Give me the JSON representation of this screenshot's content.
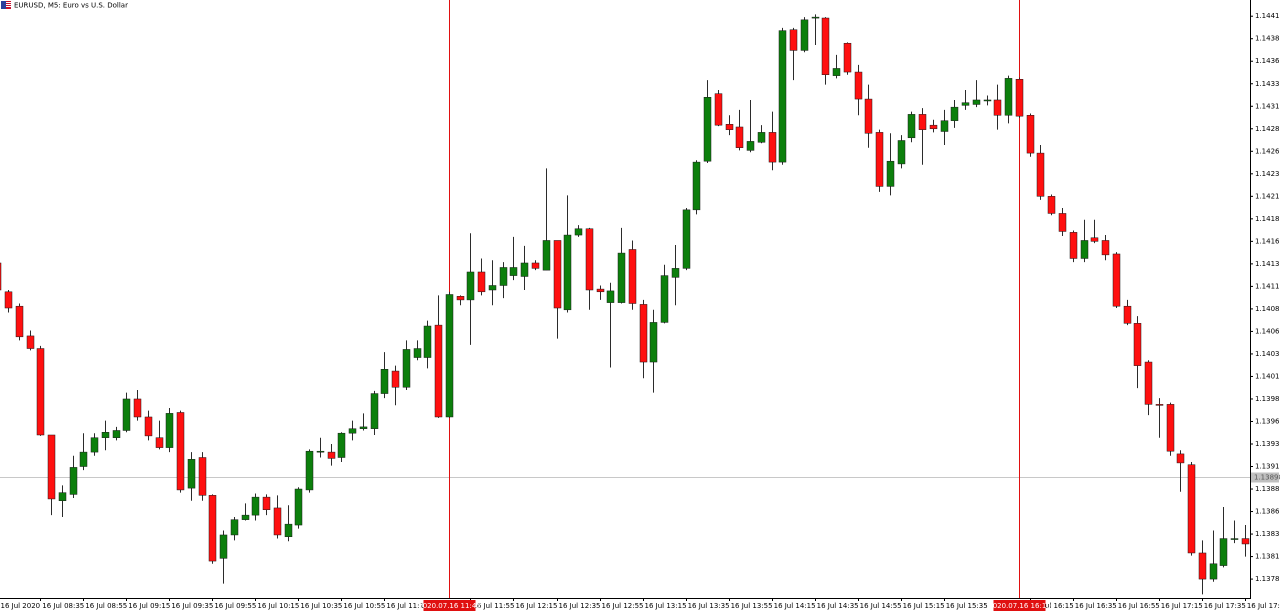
{
  "chart_data": {
    "type": "candlestick",
    "title": "EURUSD, M5:  Euro vs U.S. Dollar",
    "categories": [
      "16 Jul 2020",
      null,
      null,
      null,
      "16 Jul 08:35",
      null,
      null,
      null,
      "16 Jul 08:55",
      null,
      null,
      null,
      "16 Jul 09:15",
      null,
      null,
      null,
      "16 Jul 09:35",
      null,
      null,
      null,
      "16 Jul 09:55",
      null,
      null,
      null,
      "16 Jul 10:15",
      null,
      null,
      null,
      "16 Jul 10:35",
      null,
      null,
      null,
      "16 Jul 10:55",
      null,
      null,
      null,
      "16 Jul 11:15",
      null,
      null,
      null,
      null,
      null,
      null,
      null,
      "16 Jul 11:55",
      null,
      null,
      null,
      "16 Jul 12:15",
      null,
      null,
      null,
      "16 Jul 12:35",
      null,
      null,
      null,
      "16 Jul 12:55",
      null,
      null,
      null,
      "16 Jul 13:15",
      null,
      null,
      null,
      "16 Jul 13:35",
      null,
      null,
      null,
      "16 Jul 13:55",
      null,
      null,
      null,
      "16 Jul 14:15",
      null,
      null,
      null,
      "16 Jul 14:35",
      null,
      null,
      null,
      "16 Jul 14:55",
      null,
      null,
      null,
      "16 Jul 15:15",
      null,
      null,
      null,
      "16 Jul 15:35",
      null,
      null,
      null,
      null,
      null,
      null,
      null,
      "16 Jul 16:15",
      null,
      null,
      null,
      "16 Jul 16:35",
      null,
      null,
      null,
      "16 Jul 16:55",
      null,
      null,
      null,
      "16 Jul 17:15",
      null,
      null,
      null,
      "16 Jul 17:35",
      null,
      null,
      null,
      "16 Jul 17:55"
    ],
    "open": [
      1.14136,
      1.14104,
      1.14088,
      1.14055,
      1.14041,
      1.13945,
      1.13872,
      1.13879,
      1.1391,
      1.13926,
      1.13942,
      1.13942,
      1.1395,
      1.13985,
      1.13965,
      1.13942,
      1.13931,
      1.1397,
      1.13886,
      1.1392,
      1.13878,
      1.13808,
      1.13834,
      1.13851,
      1.13856,
      1.13876,
      1.13864,
      1.13832,
      1.13845,
      1.13884,
      1.13926,
      1.13926,
      1.1392,
      1.13947,
      1.13952,
      1.13952,
      1.13991,
      1.14016,
      1.13998,
      1.14031,
      1.14031,
      1.14067,
      1.13965,
      1.14099,
      1.14095,
      1.14126,
      1.14106,
      1.14111,
      1.14122,
      1.14121,
      1.14136,
      1.14128,
      1.14161,
      1.14084,
      1.14167,
      1.14174,
      1.14107,
      1.14092,
      1.14092,
      1.14151,
      1.1409,
      1.14026,
      1.1407,
      1.1412,
      1.1413,
      1.14195,
      1.14249,
      1.14324,
      1.1429,
      1.14287,
      1.14261,
      1.1427,
      1.14281,
      1.14248,
      1.14395,
      1.14372,
      1.14408,
      1.14408,
      1.14344,
      1.1438,
      1.14348,
      1.14318,
      1.14281,
      1.14221,
      1.14246,
      1.14275,
      1.14301,
      1.14289,
      1.14282,
      1.14294,
      1.14311,
      1.14312,
      1.14317,
      1.14317,
      1.143,
      1.1434,
      1.143,
      1.14258,
      1.1421,
      1.14191,
      1.1417,
      1.14141,
      1.14164,
      1.14161,
      1.14146,
      1.14088,
      1.14069,
      1.14026,
      1.13979,
      1.13979,
      1.13924,
      1.13912,
      1.13814,
      1.13785,
      1.138,
      1.1383,
      1.1383
    ],
    "high": [
      1.14139,
      1.14106,
      1.14091,
      1.14061,
      1.14044,
      1.13945,
      1.13889,
      1.13922,
      1.13947,
      1.13947,
      1.13961,
      1.13954,
      1.13992,
      1.13995,
      1.13972,
      1.13961,
      1.13975,
      1.13972,
      1.13926,
      1.13926,
      1.13879,
      1.13839,
      1.13854,
      1.13869,
      1.1388,
      1.13879,
      1.13878,
      1.13867,
      1.13887,
      1.13929,
      1.13942,
      1.13935,
      1.13948,
      1.13961,
      1.13969,
      1.13994,
      1.14037,
      1.14022,
      1.1405,
      1.1405,
      1.14072,
      1.141,
      1.14104,
      1.141,
      1.14169,
      1.14141,
      1.14139,
      1.14137,
      1.14165,
      1.14155,
      1.14139,
      1.14241,
      1.14161,
      1.14211,
      1.14178,
      1.14175,
      1.14111,
      1.14114,
      1.14175,
      1.14161,
      1.14095,
      1.14084,
      1.14134,
      1.14156,
      1.14197,
      1.1425,
      1.14339,
      1.14328,
      1.143,
      1.14306,
      1.14317,
      1.14289,
      1.14304,
      1.14397,
      1.14397,
      1.14409,
      1.14412,
      1.14409,
      1.14367,
      1.14381,
      1.14356,
      1.14334,
      1.14284,
      1.1428,
      1.14278,
      1.14304,
      1.14308,
      1.14295,
      1.14306,
      1.14317,
      1.14328,
      1.14339,
      1.14322,
      1.14334,
      1.14344,
      1.14342,
      1.14302,
      1.14267,
      1.14212,
      1.14197,
      1.14172,
      1.14184,
      1.14184,
      1.14167,
      1.14148,
      1.14095,
      1.14077,
      1.14028,
      1.13986,
      1.13981,
      1.13928,
      1.13915,
      1.13828,
      1.13839,
      1.13865,
      1.1385,
      1.13845
    ],
    "low": [
      1.14104,
      1.14081,
      1.1405,
      1.14039,
      1.13944,
      1.13856,
      1.13854,
      1.13875,
      1.13906,
      1.13922,
      1.13928,
      1.13939,
      1.13948,
      1.13961,
      1.13939,
      1.13929,
      1.13926,
      1.13881,
      1.13872,
      1.13872,
      1.13802,
      1.1378,
      1.13828,
      1.1385,
      1.1385,
      1.13856,
      1.1383,
      1.13827,
      1.13841,
      1.13881,
      1.1392,
      1.13911,
      1.13915,
      1.13939,
      1.1395,
      1.13945,
      1.13986,
      1.13978,
      1.13995,
      1.14028,
      1.14019,
      1.13964,
      1.13964,
      1.14089,
      1.14045,
      1.141,
      1.14089,
      1.14097,
      1.14117,
      1.14106,
      1.14128,
      1.14128,
      1.14052,
      1.14081,
      1.14165,
      1.14084,
      1.14095,
      1.1402,
      1.14091,
      1.14084,
      1.14008,
      1.13992,
      1.14069,
      1.14089,
      1.14128,
      1.1419,
      1.14247,
      1.14288,
      1.14278,
      1.14261,
      1.14259,
      1.14269,
      1.14239,
      1.14245,
      1.14339,
      1.1437,
      1.14378,
      1.14334,
      1.14341,
      1.14345,
      1.143,
      1.14264,
      1.14215,
      1.14211,
      1.14241,
      1.1427,
      1.14245,
      1.14281,
      1.14267,
      1.14286,
      1.14306,
      1.14309,
      1.14311,
      1.14284,
      1.14291,
      1.14297,
      1.14254,
      1.14206,
      1.14189,
      1.14166,
      1.14137,
      1.14137,
      1.14158,
      1.14139,
      1.14086,
      1.14067,
      1.13997,
      1.13967,
      1.13942,
      1.13922,
      1.13882,
      1.13811,
      1.13768,
      1.13782,
      1.13798,
      1.13825,
      1.1381
    ],
    "close": [
      1.14106,
      1.14086,
      1.14054,
      1.14041,
      1.13945,
      1.13874,
      1.13881,
      1.13909,
      1.13926,
      1.13942,
      1.13948,
      1.1395,
      1.13985,
      1.13965,
      1.13944,
      1.13931,
      1.13969,
      1.13884,
      1.13918,
      1.13878,
      1.13805,
      1.13834,
      1.13851,
      1.13856,
      1.13876,
      1.13862,
      1.13834,
      1.13846,
      1.13885,
      1.13927,
      1.13927,
      1.13919,
      1.13947,
      1.13952,
      1.13954,
      1.13991,
      1.14018,
      1.13998,
      1.1404,
      1.14041,
      1.14066,
      1.13965,
      1.14101,
      1.14095,
      1.14126,
      1.14104,
      1.14111,
      1.14131,
      1.14131,
      1.14136,
      1.1413,
      1.14161,
      1.14086,
      1.14167,
      1.14174,
      1.14106,
      1.14104,
      1.14105,
      1.14147,
      1.14091,
      1.14026,
      1.1407,
      1.14122,
      1.1413,
      1.14195,
      1.14248,
      1.1432,
      1.14289,
      1.14284,
      1.14264,
      1.14271,
      1.14281,
      1.14248,
      1.14394,
      1.14372,
      1.14406,
      1.14409,
      1.14345,
      1.14352,
      1.14348,
      1.14318,
      1.1428,
      1.14221,
      1.14249,
      1.14272,
      1.14301,
      1.14284,
      1.14285,
      1.14294,
      1.14309,
      1.14314,
      1.14317,
      1.14317,
      1.143,
      1.14341,
      1.14299,
      1.14258,
      1.1421,
      1.14191,
      1.14171,
      1.14141,
      1.14161,
      1.1416,
      1.14145,
      1.14088,
      1.14069,
      1.14022,
      1.13979,
      1.13978,
      1.13927,
      1.13914,
      1.13814,
      1.13785,
      1.13802,
      1.1383,
      1.1383,
      1.13824
    ],
    "up_color": "#0c7f0c",
    "down_color": "#ff1010",
    "wick_color": "#2b2b2b",
    "ylim": [
      1.13764,
      1.14428
    ],
    "yticks": [
      {
        "value": 1.1441,
        "label": "1.14410"
      },
      {
        "value": 1.14385,
        "label": "1.14385"
      },
      {
        "value": 1.1436,
        "label": "1.14360"
      },
      {
        "value": 1.14335,
        "label": "1.14335"
      },
      {
        "value": 1.1431,
        "label": "1.14310"
      },
      {
        "value": 1.14285,
        "label": "1.14285"
      },
      {
        "value": 1.1426,
        "label": "1.14260"
      },
      {
        "value": 1.14235,
        "label": "1.14235"
      },
      {
        "value": 1.1421,
        "label": "1.14210"
      },
      {
        "value": 1.14185,
        "label": "1.14185"
      },
      {
        "value": 1.1416,
        "label": "1.14160"
      },
      {
        "value": 1.14135,
        "label": "1.14135"
      },
      {
        "value": 1.1411,
        "label": "1.14110"
      },
      {
        "value": 1.14085,
        "label": "1.14085"
      },
      {
        "value": 1.1406,
        "label": "1.14060"
      },
      {
        "value": 1.14035,
        "label": "1.14035"
      },
      {
        "value": 1.1401,
        "label": "1.14010"
      },
      {
        "value": 1.13985,
        "label": "1.13985"
      },
      {
        "value": 1.1396,
        "label": "1.13960"
      },
      {
        "value": 1.13935,
        "label": "1.13935"
      },
      {
        "value": 1.1391,
        "label": "1.13910"
      },
      {
        "value": 1.13885,
        "label": "1.13885"
      },
      {
        "value": 1.1386,
        "label": "1.13860"
      },
      {
        "value": 1.13835,
        "label": "1.13835"
      },
      {
        "value": 1.1381,
        "label": "1.13810"
      },
      {
        "value": 1.13785,
        "label": "1.13785"
      }
    ],
    "price_line": {
      "value": 1.13898,
      "label": "1.13898"
    },
    "vertical_lines": [
      {
        "index": 42,
        "label": "2020.07.16 11:45"
      },
      {
        "index": 95,
        "label": "2020.07.16 16:10"
      }
    ],
    "vertical_line_color": "#e01010"
  }
}
